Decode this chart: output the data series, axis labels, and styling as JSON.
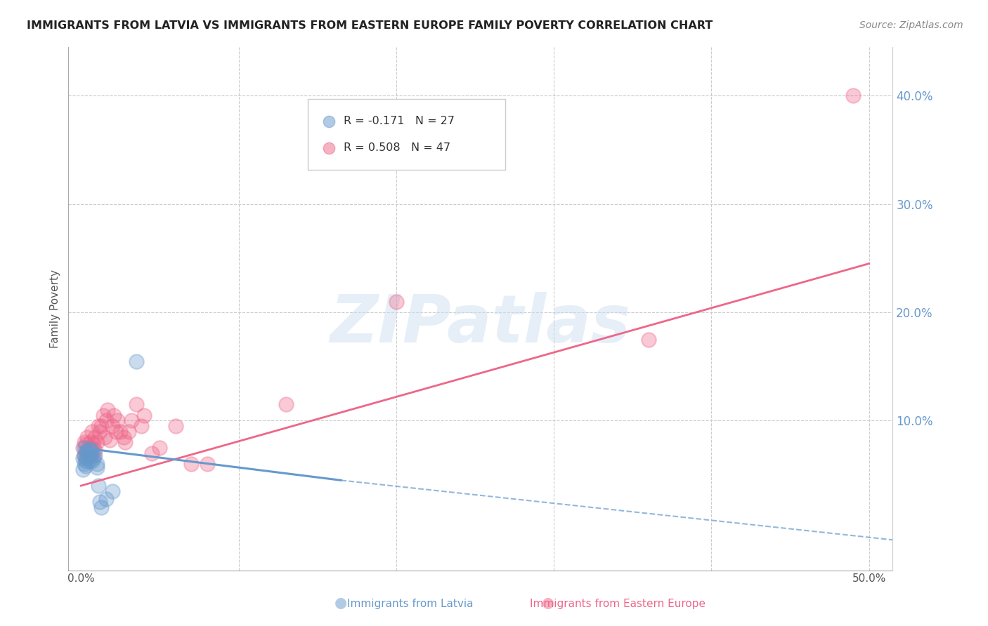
{
  "title": "IMMIGRANTS FROM LATVIA VS IMMIGRANTS FROM EASTERN EUROPE FAMILY POVERTY CORRELATION CHART",
  "source": "Source: ZipAtlas.com",
  "ylabel": "Family Poverty",
  "xlim": [
    -0.008,
    0.515
  ],
  "ylim": [
    -0.038,
    0.445
  ],
  "legend_line1": "R = -0.171   N = 27",
  "legend_line2": "R = 0.508   N = 47",
  "color_latvia": "#6699cc",
  "color_eastern": "#ee6688",
  "background_color": "#ffffff",
  "watermark_text": "ZIPatlas",
  "title_fontsize": 11.5,
  "source_fontsize": 10,
  "scatter_latvia_x": [
    0.001,
    0.001,
    0.002,
    0.002,
    0.002,
    0.003,
    0.003,
    0.003,
    0.004,
    0.004,
    0.005,
    0.005,
    0.005,
    0.006,
    0.006,
    0.007,
    0.007,
    0.008,
    0.009,
    0.01,
    0.01,
    0.011,
    0.012,
    0.013,
    0.016,
    0.02,
    0.035
  ],
  "scatter_latvia_y": [
    0.065,
    0.055,
    0.075,
    0.068,
    0.06,
    0.072,
    0.063,
    0.058,
    0.07,
    0.065,
    0.073,
    0.068,
    0.063,
    0.068,
    0.074,
    0.072,
    0.063,
    0.065,
    0.068,
    0.057,
    0.06,
    0.04,
    0.025,
    0.02,
    0.028,
    0.035,
    0.155
  ],
  "scatter_eastern_x": [
    0.001,
    0.002,
    0.002,
    0.003,
    0.003,
    0.004,
    0.004,
    0.005,
    0.005,
    0.006,
    0.006,
    0.007,
    0.007,
    0.008,
    0.008,
    0.009,
    0.009,
    0.01,
    0.011,
    0.012,
    0.013,
    0.014,
    0.015,
    0.016,
    0.017,
    0.018,
    0.02,
    0.021,
    0.022,
    0.023,
    0.025,
    0.027,
    0.028,
    0.03,
    0.032,
    0.035,
    0.038,
    0.04,
    0.045,
    0.05,
    0.06,
    0.07,
    0.08,
    0.13,
    0.2,
    0.36,
    0.49
  ],
  "scatter_eastern_y": [
    0.075,
    0.08,
    0.068,
    0.078,
    0.065,
    0.073,
    0.085,
    0.068,
    0.075,
    0.08,
    0.068,
    0.075,
    0.09,
    0.078,
    0.068,
    0.073,
    0.085,
    0.08,
    0.095,
    0.09,
    0.095,
    0.105,
    0.085,
    0.1,
    0.11,
    0.082,
    0.095,
    0.105,
    0.09,
    0.1,
    0.09,
    0.085,
    0.08,
    0.09,
    0.1,
    0.115,
    0.095,
    0.105,
    0.07,
    0.075,
    0.095,
    0.06,
    0.06,
    0.115,
    0.21,
    0.175,
    0.4
  ],
  "line_eastern_x0": 0.0,
  "line_eastern_x1": 0.5,
  "line_eastern_y0": 0.04,
  "line_eastern_y1": 0.245,
  "line_latvia_solid_x0": 0.0,
  "line_latvia_solid_x1": 0.165,
  "line_latvia_solid_y0": 0.075,
  "line_latvia_solid_y1": 0.045,
  "line_latvia_dashed_x0": 0.165,
  "line_latvia_dashed_x1": 0.515,
  "line_latvia_dashed_y0": 0.045,
  "line_latvia_dashed_y1": -0.01
}
